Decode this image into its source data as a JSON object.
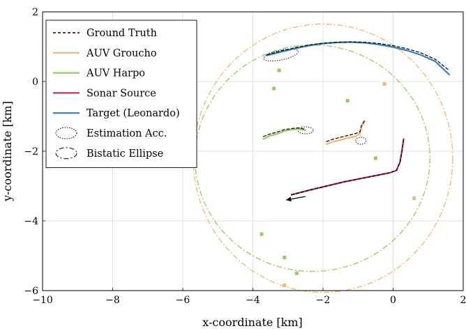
{
  "chart_data": {
    "type": "line",
    "xlabel": "x-coordinate [km]",
    "ylabel": "y-coordinate [km]",
    "xlim": [
      -10,
      2
    ],
    "ylim": [
      -6,
      2
    ],
    "x_ticks": [
      -10,
      -8,
      -6,
      -4,
      -2,
      0,
      2
    ],
    "y_ticks": [
      -6,
      -4,
      -2,
      0,
      2
    ],
    "x_tick_labels": [
      "−10",
      "−8",
      "−6",
      "−4",
      "−2",
      "0",
      "2"
    ],
    "y_tick_labels": [
      "−6",
      "−4",
      "−2",
      "0",
      "2"
    ],
    "grid": true,
    "legend_position": "top-left",
    "legend": [
      {
        "key": "ground_truth",
        "label": "Ground Truth",
        "color": "#000000",
        "style": "dashed-line"
      },
      {
        "key": "groucho",
        "label": "AUV Groucho",
        "color": "#f4b36e",
        "style": "line"
      },
      {
        "key": "harpo",
        "label": "AUV Harpo",
        "color": "#8fcd5c",
        "style": "line"
      },
      {
        "key": "sonar",
        "label": "Sonar Source",
        "color": "#c8324e",
        "style": "line"
      },
      {
        "key": "target",
        "label": "Target (Leonardo)",
        "color": "#2f7fc1",
        "style": "line"
      },
      {
        "key": "accuracy",
        "label": "Estimation Acc.",
        "color": "#000000",
        "style": "dotted-ellipse"
      },
      {
        "key": "bistatic",
        "label": "Bistatic Ellipse",
        "color": "#000000",
        "style": "dashdot-ellipse"
      }
    ],
    "series": [
      {
        "name": "Target (Leonardo)",
        "color": "#2f7fc1",
        "x": [
          -3.6,
          -3.2,
          -2.8,
          -2.4,
          -2.0,
          -1.6,
          -1.2,
          -0.8,
          -0.4,
          0.0,
          0.4,
          0.8,
          1.2,
          1.6
        ],
        "y": [
          0.75,
          0.85,
          0.95,
          1.03,
          1.09,
          1.12,
          1.13,
          1.11,
          1.06,
          0.99,
          0.89,
          0.76,
          0.58,
          0.2
        ]
      },
      {
        "name": "Ground Truth",
        "color": "#000000",
        "x": [
          -3.6,
          -3.2,
          -2.8,
          -2.4,
          -2.0,
          -1.6,
          -1.2,
          -0.8,
          -0.4,
          0.0,
          0.4,
          0.8,
          1.2,
          1.6
        ],
        "y": [
          0.77,
          0.88,
          0.97,
          1.05,
          1.1,
          1.13,
          1.14,
          1.13,
          1.09,
          1.03,
          0.94,
          0.82,
          0.64,
          0.32
        ]
      },
      {
        "name": "AUV Harpo",
        "color": "#8fcd5c",
        "x": [
          -3.7,
          -3.5,
          -3.3,
          -3.1,
          -2.9,
          -2.7,
          -2.5
        ],
        "y": [
          -1.65,
          -1.55,
          -1.5,
          -1.42,
          -1.38,
          -1.36,
          -1.4
        ]
      },
      {
        "name": "Ground Truth",
        "color": "#000000",
        "x": [
          -3.7,
          -3.5,
          -3.3,
          -3.1,
          -2.9,
          -2.7,
          -2.5
        ],
        "y": [
          -1.58,
          -1.5,
          -1.45,
          -1.38,
          -1.35,
          -1.33,
          -1.37
        ]
      },
      {
        "name": "AUV Groucho",
        "color": "#f4b36e",
        "x": [
          -1.9,
          -1.7,
          -1.5,
          -1.3,
          -1.1,
          -0.95,
          -0.9,
          -0.8
        ],
        "y": [
          -1.8,
          -1.72,
          -1.68,
          -1.62,
          -1.58,
          -1.5,
          -1.3,
          -1.15
        ]
      },
      {
        "name": "Ground Truth",
        "color": "#000000",
        "x": [
          -1.9,
          -1.7,
          -1.5,
          -1.3,
          -1.1,
          -0.95,
          -0.9,
          -0.8
        ],
        "y": [
          -1.72,
          -1.65,
          -1.6,
          -1.55,
          -1.5,
          -1.45,
          -1.25,
          -1.1
        ]
      },
      {
        "name": "Sonar Source",
        "color": "#c8324e",
        "x": [
          -2.9,
          -2.4,
          -1.9,
          -1.4,
          -0.9,
          -0.4,
          -0.1,
          0.1,
          0.2,
          0.25,
          0.3
        ],
        "y": [
          -3.25,
          -3.12,
          -3.0,
          -2.88,
          -2.78,
          -2.68,
          -2.62,
          -2.55,
          -2.3,
          -2.0,
          -1.65
        ]
      },
      {
        "name": "Ground Truth",
        "color": "#000000",
        "x": [
          -2.9,
          -2.4,
          -1.9,
          -1.4,
          -0.9,
          -0.4,
          -0.1,
          0.1,
          0.2,
          0.25,
          0.3
        ],
        "y": [
          -3.25,
          -3.12,
          -3.0,
          -2.88,
          -2.78,
          -2.68,
          -2.62,
          -2.55,
          -2.3,
          -2.0,
          -1.65
        ]
      }
    ],
    "bistatic_ellipses": [
      {
        "name": "AUV Groucho",
        "color": "#f4b36e",
        "center": [
          -2.0,
          -2.2
        ],
        "radii": [
          3.7,
          3.85
        ]
      },
      {
        "name": "AUV Harpo",
        "color": "#8fcd5c",
        "center": [
          -2.3,
          -2.2
        ],
        "radii": [
          3.35,
          3.25
        ]
      }
    ],
    "accuracy_ellipses": [
      {
        "center": [
          -3.2,
          0.76
        ],
        "radii": [
          0.5,
          0.14
        ],
        "rotation_deg": -12
      },
      {
        "center": [
          -2.5,
          -1.4
        ],
        "radii": [
          0.22,
          0.1
        ],
        "rotation_deg": 0
      },
      {
        "center": [
          -0.92,
          -1.7
        ],
        "radii": [
          0.15,
          0.1
        ],
        "rotation_deg": 0
      }
    ],
    "markers": [
      {
        "name": "Harpo marker",
        "color": "#8fcd5c",
        "x": -3.25,
        "y": 0.32
      },
      {
        "name": "Harpo marker",
        "color": "#8fcd5c",
        "x": -3.4,
        "y": -0.2
      },
      {
        "name": "Harpo marker",
        "color": "#8fcd5c",
        "x": -1.3,
        "y": -0.55
      },
      {
        "name": "Harpo marker",
        "color": "#8fcd5c",
        "x": -0.5,
        "y": -2.2
      },
      {
        "name": "Harpo marker",
        "color": "#8fcd5c",
        "x": -3.75,
        "y": -4.38
      },
      {
        "name": "Harpo marker",
        "color": "#8fcd5c",
        "x": -3.1,
        "y": -5.05
      },
      {
        "name": "Harpo marker",
        "color": "#8fcd5c",
        "x": -2.75,
        "y": -5.5
      },
      {
        "name": "Groucho marker",
        "color": "#f4b36e",
        "x": -0.25,
        "y": -0.07
      },
      {
        "name": "Groucho marker",
        "color": "#f4b36e",
        "x": 0.6,
        "y": -3.35
      },
      {
        "name": "Groucho marker",
        "color": "#f4b36e",
        "x": -3.1,
        "y": -5.85
      }
    ],
    "heading_arrow": {
      "from": [
        -2.5,
        -3.3
      ],
      "to": [
        -3.05,
        -3.4
      ],
      "color": "#000000"
    }
  }
}
